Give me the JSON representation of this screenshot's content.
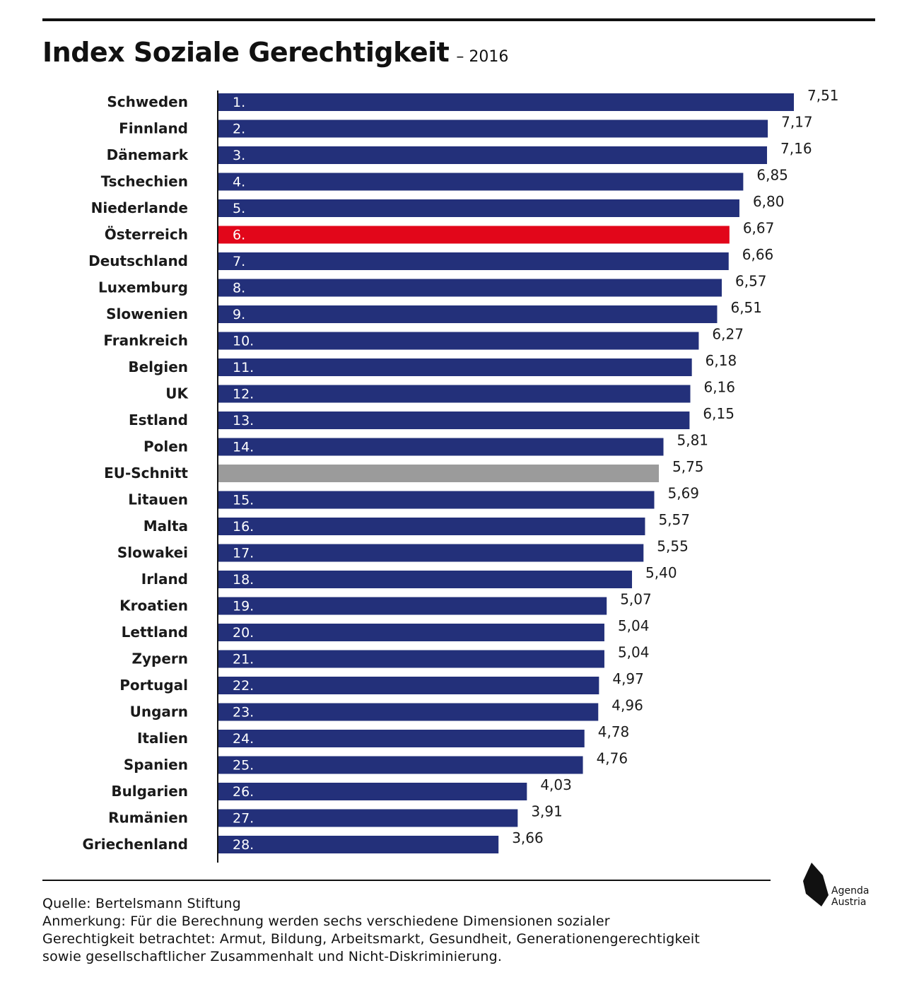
{
  "header": {
    "title": "Index Soziale Gerechtigkeit",
    "subtitle": "– 2016"
  },
  "colors": {
    "default_bar": "#23307a",
    "highlight_bar": "#e2061a",
    "average_bar": "#9b9b9b"
  },
  "chart_data": {
    "type": "bar",
    "orientation": "horizontal",
    "title": "Index Soziale Gerechtigkeit",
    "subtitle": "– 2016",
    "xlim": [
      0,
      7.51
    ],
    "grid": false,
    "bars": [
      {
        "country": "Schweden",
        "rank": "1.",
        "value": 7.51,
        "label": "7,51",
        "kind": "default"
      },
      {
        "country": "Finnland",
        "rank": "2.",
        "value": 7.17,
        "label": "7,17",
        "kind": "default"
      },
      {
        "country": "Dänemark",
        "rank": "3.",
        "value": 7.16,
        "label": "7,16",
        "kind": "default"
      },
      {
        "country": "Tschechien",
        "rank": "4.",
        "value": 6.85,
        "label": "6,85",
        "kind": "default"
      },
      {
        "country": "Niederlande",
        "rank": "5.",
        "value": 6.8,
        "label": "6,80",
        "kind": "default"
      },
      {
        "country": "Österreich",
        "rank": "6.",
        "value": 6.67,
        "label": "6,67",
        "kind": "highlight"
      },
      {
        "country": "Deutschland",
        "rank": "7.",
        "value": 6.66,
        "label": "6,66",
        "kind": "default"
      },
      {
        "country": "Luxemburg",
        "rank": "8.",
        "value": 6.57,
        "label": "6,57",
        "kind": "default"
      },
      {
        "country": "Slowenien",
        "rank": "9.",
        "value": 6.51,
        "label": "6,51",
        "kind": "default"
      },
      {
        "country": "Frankreich",
        "rank": "10.",
        "value": 6.27,
        "label": "6,27",
        "kind": "default"
      },
      {
        "country": "Belgien",
        "rank": "11.",
        "value": 6.18,
        "label": "6,18",
        "kind": "default"
      },
      {
        "country": "UK",
        "rank": "12.",
        "value": 6.16,
        "label": "6,16",
        "kind": "default"
      },
      {
        "country": "Estland",
        "rank": "13.",
        "value": 6.15,
        "label": "6,15",
        "kind": "default"
      },
      {
        "country": "Polen",
        "rank": "14.",
        "value": 5.81,
        "label": "5,81",
        "kind": "default"
      },
      {
        "country": "EU-Schnitt",
        "rank": "",
        "value": 5.75,
        "label": "5,75",
        "kind": "average"
      },
      {
        "country": "Litauen",
        "rank": "15.",
        "value": 5.69,
        "label": "5,69",
        "kind": "default"
      },
      {
        "country": "Malta",
        "rank": "16.",
        "value": 5.57,
        "label": "5,57",
        "kind": "default"
      },
      {
        "country": "Slowakei",
        "rank": "17.",
        "value": 5.55,
        "label": "5,55",
        "kind": "default"
      },
      {
        "country": "Irland",
        "rank": "18.",
        "value": 5.4,
        "label": "5,40",
        "kind": "default"
      },
      {
        "country": "Kroatien",
        "rank": "19.",
        "value": 5.07,
        "label": "5,07",
        "kind": "default"
      },
      {
        "country": "Lettland",
        "rank": "20.",
        "value": 5.04,
        "label": "5,04",
        "kind": "default"
      },
      {
        "country": "Zypern",
        "rank": "21.",
        "value": 5.04,
        "label": "5,04",
        "kind": "default"
      },
      {
        "country": "Portugal",
        "rank": "22.",
        "value": 4.97,
        "label": "4,97",
        "kind": "default"
      },
      {
        "country": "Ungarn",
        "rank": "23.",
        "value": 4.96,
        "label": "4,96",
        "kind": "default"
      },
      {
        "country": "Italien",
        "rank": "24.",
        "value": 4.78,
        "label": "4,78",
        "kind": "default"
      },
      {
        "country": "Spanien",
        "rank": "25.",
        "value": 4.76,
        "label": "4,76",
        "kind": "default"
      },
      {
        "country": "Bulgarien",
        "rank": "26.",
        "value": 4.03,
        "label": "4,03",
        "kind": "default"
      },
      {
        "country": "Rumänien",
        "rank": "27.",
        "value": 3.91,
        "label": "3,91",
        "kind": "default"
      },
      {
        "country": "Griechenland",
        "rank": "28.",
        "value": 3.66,
        "label": "3,66",
        "kind": "default"
      }
    ]
  },
  "footer": {
    "source": "Quelle: Bertelsmann Stiftung",
    "note_line1": "Anmerkung: Für die Berechnung werden sechs verschiedene Dimensionen sozialer",
    "note_line2": "Gerechtigkeit betrachtet: Armut, Bildung, Arbeitsmarkt, Gesundheit, Generationengerechtigkeit",
    "note_line3": "sowie gesellschaftlicher Zusammenhalt und Nicht-Diskriminierung."
  },
  "logo": {
    "line1": "Agenda",
    "line2": "Austria"
  }
}
